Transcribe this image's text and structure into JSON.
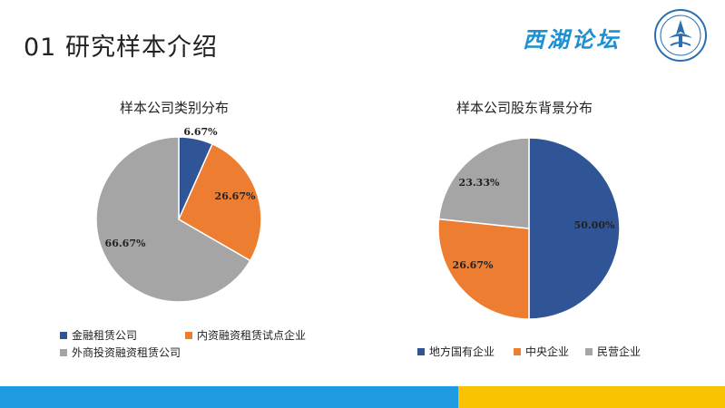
{
  "slide": {
    "title": "01  研究样本介绍"
  },
  "logo": {
    "text": "西湖论坛",
    "icon": "emblem-icon"
  },
  "colors": {
    "blue": "#2f5597",
    "orange": "#ed7d31",
    "gray": "#a5a5a5",
    "footer_blue": "#1e9be0",
    "footer_yellow": "#f8c300"
  },
  "chart_data": [
    {
      "type": "pie",
      "title": "样本公司类别分布",
      "slices": [
        {
          "label": "金融租赁公司",
          "value": 6.67,
          "display": "6.67%",
          "color": "#2f5597"
        },
        {
          "label": "内资融资租赁试点企业",
          "value": 26.67,
          "display": "26.67%",
          "color": "#ed7d31"
        },
        {
          "label": "外商投资融资租赁公司",
          "value": 66.67,
          "display": "66.67%",
          "color": "#a5a5a5"
        }
      ],
      "legend_position": "bottom"
    },
    {
      "type": "pie",
      "title": "样本公司股东背景分布",
      "slices": [
        {
          "label": "地方国有企业",
          "value": 50.0,
          "display": "50.00%",
          "color": "#2f5597"
        },
        {
          "label": "中央企业",
          "value": 26.67,
          "display": "26.67%",
          "color": "#ed7d31"
        },
        {
          "label": "民营企业",
          "value": 23.33,
          "display": "23.33%",
          "color": "#a5a5a5"
        }
      ],
      "legend_position": "bottom"
    }
  ]
}
